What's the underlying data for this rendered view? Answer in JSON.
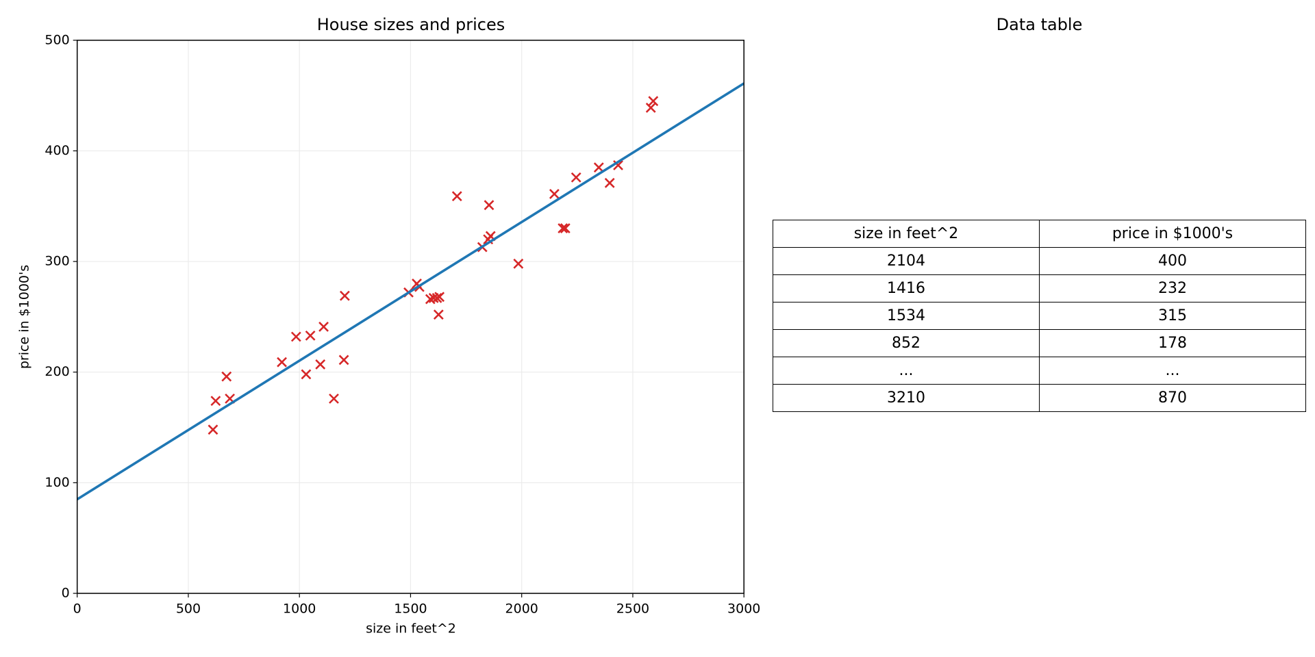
{
  "chart_data": {
    "type": "scatter",
    "title": "House sizes and prices",
    "xlabel": "size in feet^2",
    "ylabel": "price in $1000's",
    "xlim": [
      0,
      3000
    ],
    "ylim": [
      0,
      500
    ],
    "xticks": [
      0,
      500,
      1000,
      1500,
      2000,
      2500,
      3000
    ],
    "yticks": [
      0,
      100,
      200,
      300,
      400,
      500
    ],
    "grid": true,
    "series": [
      {
        "marker": "x",
        "color": "#d62728",
        "x": [
          611,
          623,
          672,
          687,
          921,
          985,
          1030,
          1049,
          1094,
          1109,
          1155,
          1200,
          1204,
          1491,
          1528,
          1540,
          1589,
          1604,
          1619,
          1630,
          1626,
          1709,
          1823,
          1849,
          1860,
          1853,
          1985,
          2147,
          2185,
          2196,
          2245,
          2347,
          2396,
          2434,
          2581,
          2592
        ],
        "values": [
          148,
          174,
          196,
          176,
          209,
          232,
          198,
          233,
          207,
          241,
          176,
          211,
          269,
          272,
          280,
          277,
          266,
          267,
          267,
          268,
          252,
          359,
          313,
          320,
          323,
          351,
          298,
          361,
          330,
          330,
          376,
          385,
          371,
          387,
          439,
          445
        ]
      },
      {
        "marker": "line",
        "color": "#1f77b4",
        "x": [
          0,
          3000
        ],
        "values": [
          85,
          461
        ]
      }
    ]
  },
  "table": {
    "title": "Data table",
    "columns": [
      "size in feet^2",
      "price in $1000's"
    ],
    "rows": [
      [
        "2104",
        "400"
      ],
      [
        "1416",
        "232"
      ],
      [
        "1534",
        "315"
      ],
      [
        "852",
        "178"
      ],
      [
        "...",
        "..."
      ],
      [
        "3210",
        "870"
      ]
    ]
  }
}
